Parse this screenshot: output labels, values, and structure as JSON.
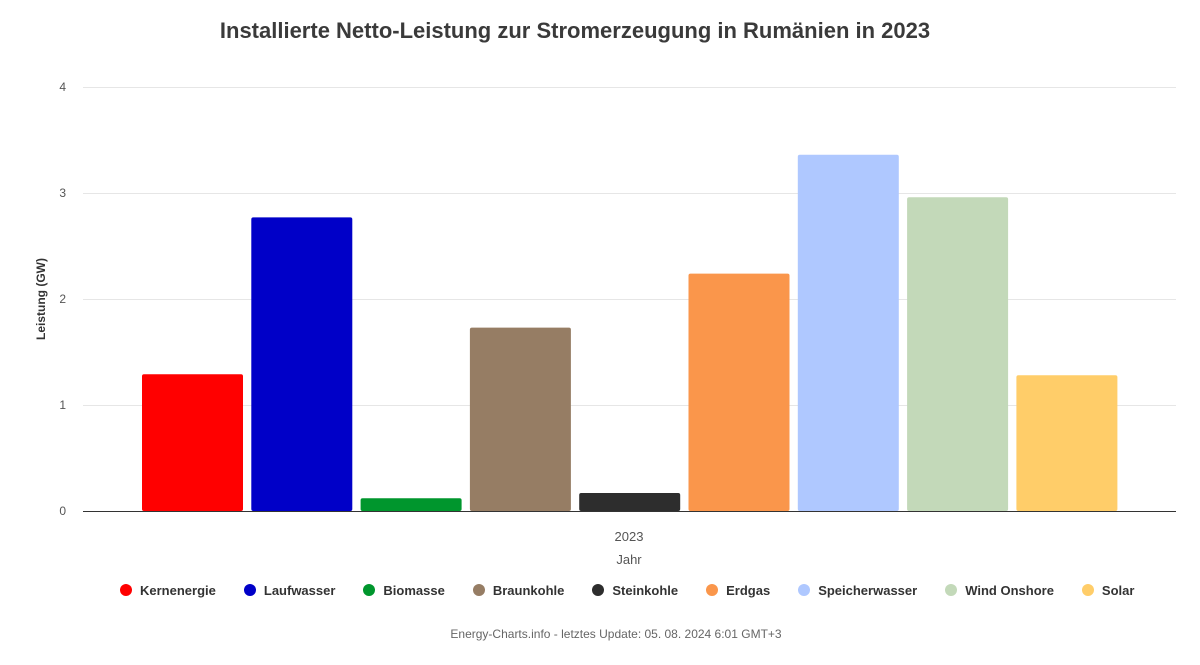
{
  "footer": {
    "text": "Energy-Charts.info - letztes Update: 05. 08. 2024 6:01 GMT+3"
  },
  "chart_data": {
    "type": "bar",
    "title": "Installierte Netto-Leistung zur Stromerzeugung in Rumänien in 2023",
    "xlabel": "Jahr",
    "ylabel": "Leistung (GW)",
    "categories": [
      "2023"
    ],
    "ylim": [
      0,
      4
    ],
    "yticks": [
      "0",
      "1",
      "2",
      "3",
      "4"
    ],
    "grid": true,
    "legend_position": "bottom",
    "series": [
      {
        "name": "Kernenergie",
        "color": "#ff0000",
        "values": [
          1.29
        ]
      },
      {
        "name": "Laufwasser",
        "color": "#0000c8",
        "values": [
          2.77
        ]
      },
      {
        "name": "Biomasse",
        "color": "#00962d",
        "values": [
          0.12
        ]
      },
      {
        "name": "Braunkohle",
        "color": "#967d64",
        "values": [
          1.73
        ]
      },
      {
        "name": "Steinkohle",
        "color": "#2d2d2d",
        "values": [
          0.17
        ]
      },
      {
        "name": "Erdgas",
        "color": "#fa964b",
        "values": [
          2.24
        ]
      },
      {
        "name": "Speicherwasser",
        "color": "#afc8ff",
        "values": [
          3.36
        ]
      },
      {
        "name": "Wind Onshore",
        "color": "#c3d9b9",
        "values": [
          2.96
        ]
      },
      {
        "name": "Solar",
        "color": "#ffcd69",
        "values": [
          1.28
        ]
      }
    ]
  }
}
